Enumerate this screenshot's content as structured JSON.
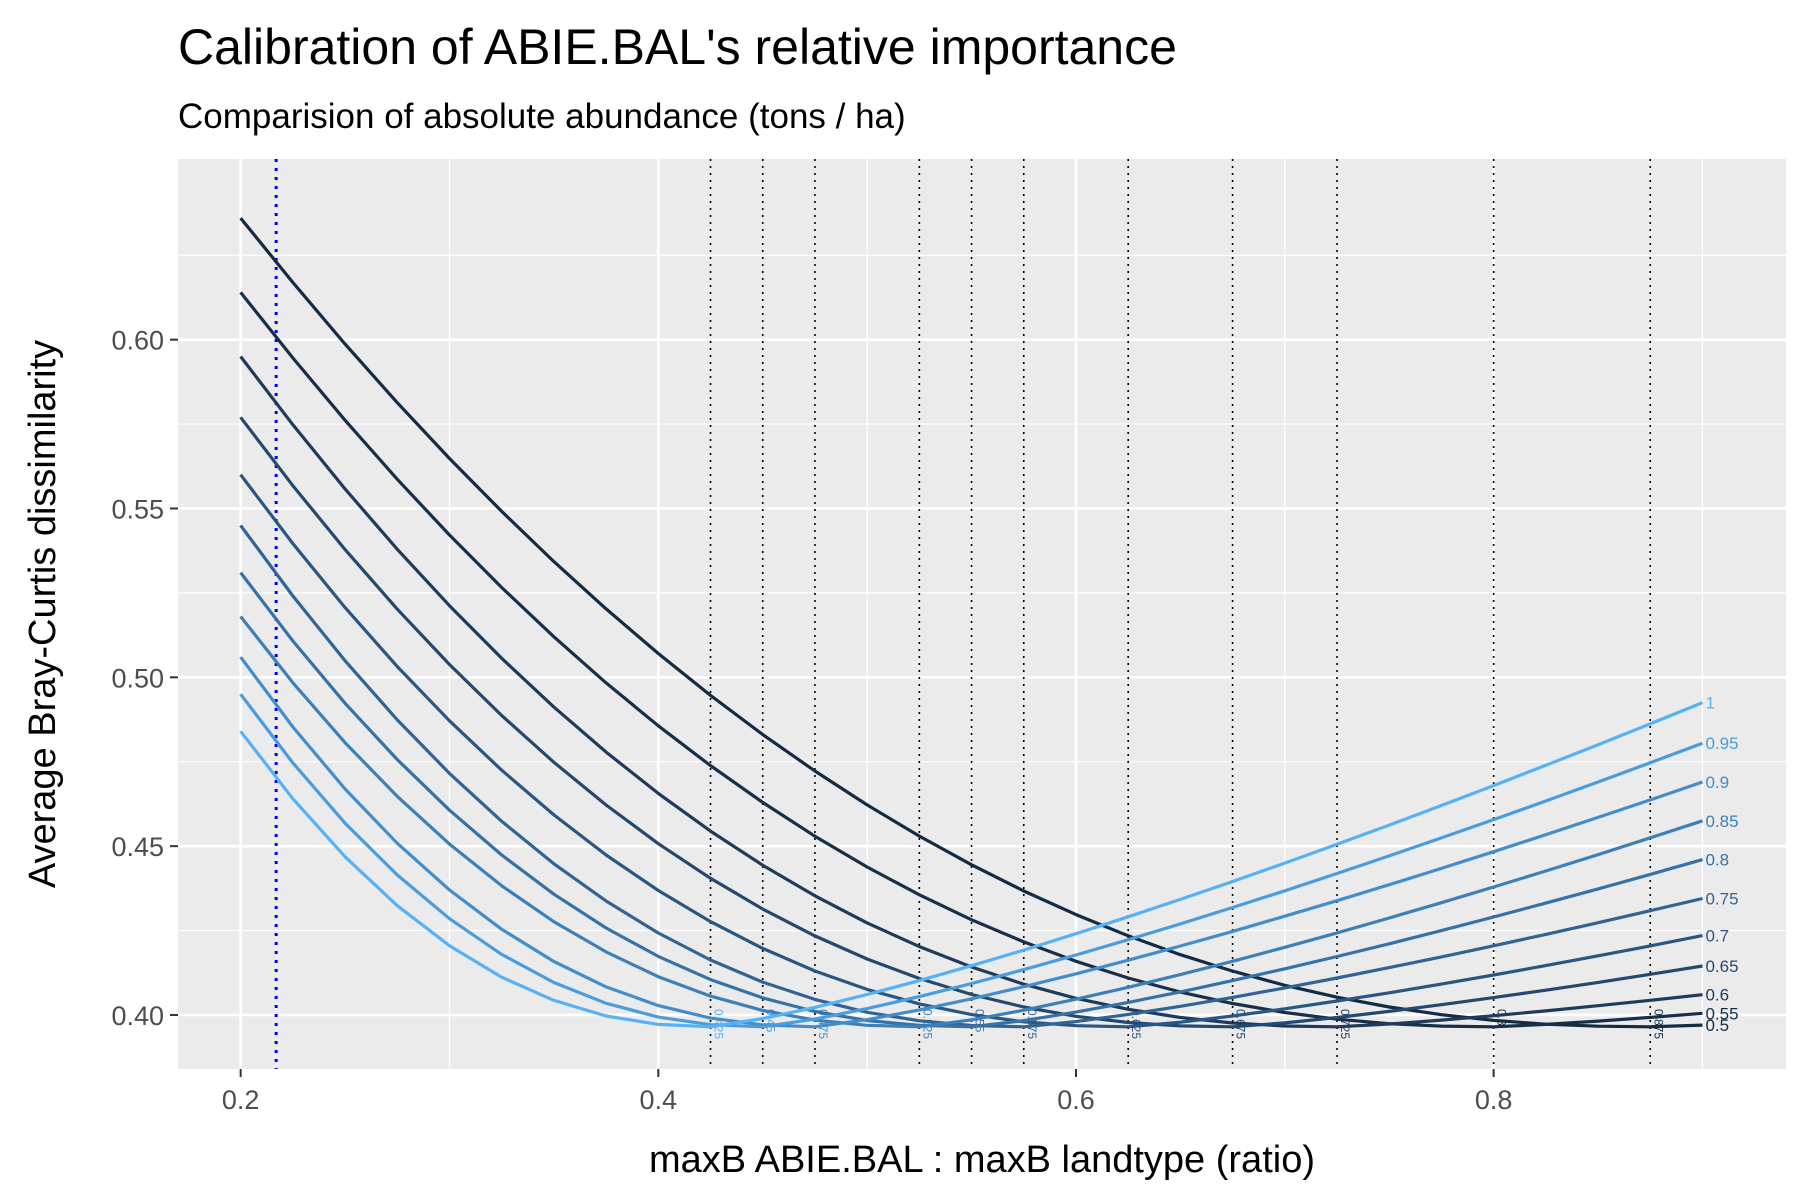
{
  "chart_data": {
    "type": "line",
    "title": "Calibration of ABIE.BAL's relative importance",
    "subtitle": "Comparision of absolute abundance (tons / ha)",
    "xlabel": "maxB ABIE.BAL : maxB landtype (ratio)",
    "ylabel": "Average Bray-Curtis dissimilarity",
    "xlim": [
      0.17,
      0.94
    ],
    "ylim": [
      0.384,
      0.6535
    ],
    "x_ticks": [
      0.2,
      0.4,
      0.6,
      0.8
    ],
    "x_tick_labels": [
      "0.2",
      "0.4",
      "0.6",
      "0.8"
    ],
    "y_ticks": [
      0.4,
      0.45,
      0.5,
      0.55,
      0.6
    ],
    "y_tick_labels": [
      "0.40",
      "0.45",
      "0.50",
      "0.55",
      "0.60"
    ],
    "grid": true,
    "legend": "none",
    "reference_line": {
      "x": 0.217,
      "color": "#0000ff",
      "style": "dotted"
    },
    "series": [
      {
        "name": "0.5",
        "label": "0.5",
        "color": "#132b43",
        "y_start": 0.636,
        "min_x": 0.875,
        "min_y": 0.3965,
        "end_y": 0.397
      },
      {
        "name": "0.55",
        "label": "0.55",
        "color": "#182f4a",
        "y_start": 0.614,
        "min_x": 0.8,
        "min_y": 0.3965,
        "end_y": 0.4005
      },
      {
        "name": "0.6",
        "label": "0.6",
        "color": "#1e3a5c",
        "y_start": 0.595,
        "min_x": 0.725,
        "min_y": 0.3965,
        "end_y": 0.406
      },
      {
        "name": "0.65",
        "label": "0.65",
        "color": "#24496f",
        "y_start": 0.577,
        "min_x": 0.675,
        "min_y": 0.3965,
        "end_y": 0.4145
      },
      {
        "name": "0.7",
        "label": "0.7",
        "color": "#2a5782",
        "y_start": 0.56,
        "min_x": 0.625,
        "min_y": 0.3965,
        "end_y": 0.4235
      },
      {
        "name": "0.75",
        "label": "0.75",
        "color": "#306494",
        "y_start": 0.545,
        "min_x": 0.575,
        "min_y": 0.3965,
        "end_y": 0.4345
      },
      {
        "name": "0.8",
        "label": "0.8",
        "color": "#3672a6",
        "y_start": 0.531,
        "min_x": 0.55,
        "min_y": 0.3965,
        "end_y": 0.446
      },
      {
        "name": "0.85",
        "label": "0.85",
        "color": "#3d80b8",
        "y_start": 0.518,
        "min_x": 0.525,
        "min_y": 0.3965,
        "end_y": 0.4575
      },
      {
        "name": "0.9",
        "label": "0.9",
        "color": "#438eca",
        "y_start": 0.506,
        "min_x": 0.475,
        "min_y": 0.3965,
        "end_y": 0.469
      },
      {
        "name": "0.95",
        "label": "0.95",
        "color": "#4a9cdc",
        "y_start": 0.495,
        "min_x": 0.45,
        "min_y": 0.3965,
        "end_y": 0.4805
      },
      {
        "name": "1",
        "label": "1",
        "color": "#56b1f7",
        "y_start": 0.484,
        "min_x": 0.425,
        "min_y": 0.3965,
        "end_y": 0.4925
      }
    ],
    "x_end": 0.9,
    "optimum_lines": [
      {
        "x": 0.425,
        "label": "0.425",
        "color": "#56b1f7"
      },
      {
        "x": 0.45,
        "label": "0.45",
        "color": "#4a9cdc"
      },
      {
        "x": 0.475,
        "label": "0.475",
        "color": "#438eca"
      },
      {
        "x": 0.525,
        "label": "0.525",
        "color": "#3d80b8"
      },
      {
        "x": 0.55,
        "label": "0.55",
        "color": "#3672a6"
      },
      {
        "x": 0.575,
        "label": "0.575",
        "color": "#306494"
      },
      {
        "x": 0.625,
        "label": "0.625",
        "color": "#2a5782"
      },
      {
        "x": 0.675,
        "label": "0.675",
        "color": "#24496f"
      },
      {
        "x": 0.725,
        "label": "0.725",
        "color": "#1e3a5c"
      },
      {
        "x": 0.8,
        "label": "0.8",
        "color": "#182f4a"
      },
      {
        "x": 0.875,
        "label": "0.875",
        "color": "#132b43"
      }
    ]
  }
}
